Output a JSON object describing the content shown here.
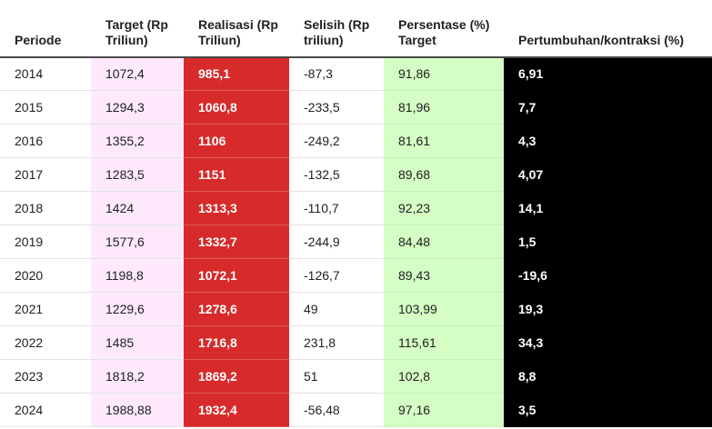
{
  "table": {
    "headers": {
      "periode": "Periode",
      "target": "Target (Rp Triliun)",
      "realisasi": "Realisasi (Rp Triliun)",
      "selisih": "Selisih (Rp triliun)",
      "persentase": "Persentase (%) Target",
      "pertumbuhan": "Pertumbuhan/kontraksi (%)"
    },
    "colors": {
      "target_bg": "#fde9fb",
      "realisasi_bg": "#d72a2a",
      "persentase_bg": "#d5fec4",
      "pertumbuhan_bg": "#000000"
    },
    "rows": [
      {
        "periode": "2014",
        "target": "1072,4",
        "realisasi": "985,1",
        "selisih": "-87,3",
        "persentase": "91,86",
        "pertumbuhan": "6,91"
      },
      {
        "periode": "2015",
        "target": "1294,3",
        "realisasi": "1060,8",
        "selisih": "-233,5",
        "persentase": "81,96",
        "pertumbuhan": "7,7"
      },
      {
        "periode": "2016",
        "target": "1355,2",
        "realisasi": "1106",
        "selisih": "-249,2",
        "persentase": "81,61",
        "pertumbuhan": "4,3"
      },
      {
        "periode": "2017",
        "target": "1283,5",
        "realisasi": "1151",
        "selisih": "-132,5",
        "persentase": "89,68",
        "pertumbuhan": "4,07"
      },
      {
        "periode": "2018",
        "target": "1424",
        "realisasi": "1313,3",
        "selisih": "-110,7",
        "persentase": "92,23",
        "pertumbuhan": "14,1"
      },
      {
        "periode": "2019",
        "target": "1577,6",
        "realisasi": "1332,7",
        "selisih": "-244,9",
        "persentase": "84,48",
        "pertumbuhan": "1,5"
      },
      {
        "periode": "2020",
        "target": "1198,8",
        "realisasi": "1072,1",
        "selisih": "-126,7",
        "persentase": "89,43",
        "pertumbuhan": "-19,6"
      },
      {
        "periode": "2021",
        "target": "1229,6",
        "realisasi": "1278,6",
        "selisih": "49",
        "persentase": "103,99",
        "pertumbuhan": "19,3"
      },
      {
        "periode": "2022",
        "target": "1485",
        "realisasi": "1716,8",
        "selisih": "231,8",
        "persentase": "115,61",
        "pertumbuhan": "34,3"
      },
      {
        "periode": "2023",
        "target": "1818,2",
        "realisasi": "1869,2",
        "selisih": "51",
        "persentase": "102,8",
        "pertumbuhan": "8,8"
      },
      {
        "periode": "2024",
        "target": "1988,88",
        "realisasi": "1932,4",
        "selisih": "-56,48",
        "persentase": "97,16",
        "pertumbuhan": "3,5"
      }
    ]
  }
}
